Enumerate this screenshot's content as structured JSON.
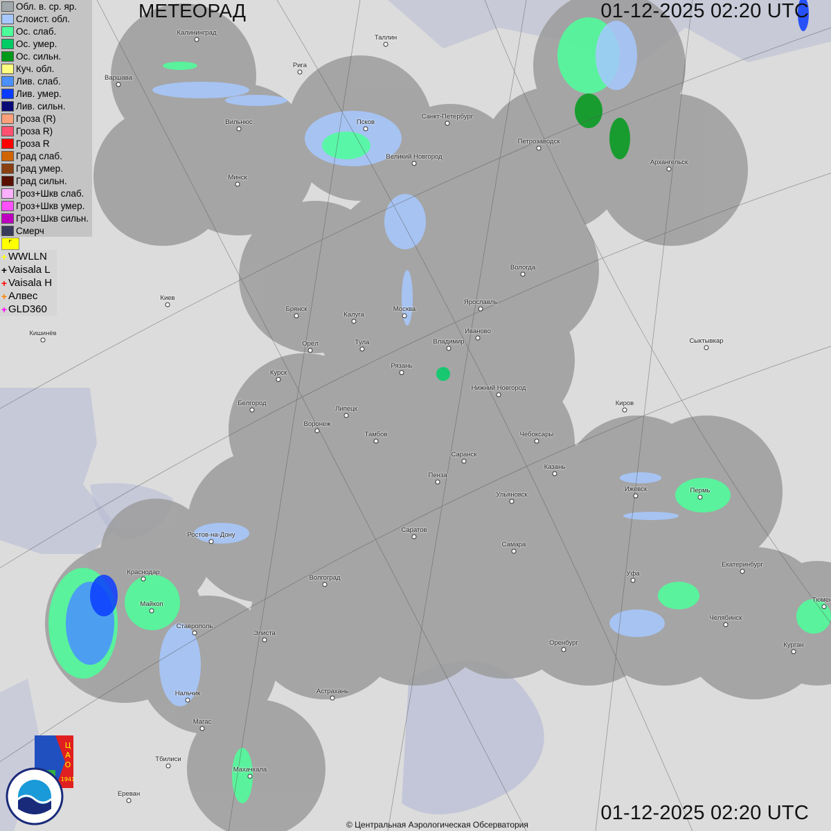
{
  "header": {
    "title": "МЕТЕОРАД",
    "timestamp": "01-12-2025  02:20 UTC"
  },
  "footer": {
    "timestamp": "01-12-2025  02:20 UTC",
    "copyright": "© Центральная Аэрологическая Обсерватория"
  },
  "legend": [
    {
      "label": "Обл. в. ср. яр.",
      "color": "#a0a8ac"
    },
    {
      "label": "Слоист. обл.",
      "color": "#a6c8ff"
    },
    {
      "label": "Ос. слаб.",
      "color": "#4cff9a"
    },
    {
      "label": "Ос. умер.",
      "color": "#00cc66"
    },
    {
      "label": "Ос. сильн.",
      "color": "#009a1a"
    },
    {
      "label": "Куч. обл.",
      "color": "#ffff80"
    },
    {
      "label": "Лив. слаб.",
      "color": "#4a90ff"
    },
    {
      "label": "Лив. умер.",
      "color": "#0a3cff"
    },
    {
      "label": "Лив. сильн.",
      "color": "#0a0a78"
    },
    {
      "label": "Гроза (R)",
      "color": "#ffa07a"
    },
    {
      "label": "Гроза R)",
      "color": "#ff5070"
    },
    {
      "label": "Гроза R",
      "color": "#ff0000"
    },
    {
      "label": "Град слаб.",
      "color": "#d06400"
    },
    {
      "label": "Град умер.",
      "color": "#8a4010"
    },
    {
      "label": "Град сильн.",
      "color": "#5a1000"
    },
    {
      "label": "Гроз+Шкв слаб.",
      "color": "#ffb0ff"
    },
    {
      "label": "Гроз+Шкв умер.",
      "color": "#ff50ff"
    },
    {
      "label": "Гроз+Шкв сильн.",
      "color": "#c000c0"
    },
    {
      "label": "Смерч",
      "color": "#3a3a5a"
    }
  ],
  "flag_symbol": "⌜",
  "lightning": [
    {
      "label": "WWLLN",
      "color": "#ffff00"
    },
    {
      "label": "Vaisala L",
      "color": "#000000"
    },
    {
      "label": "Vaisala H",
      "color": "#ff0000"
    },
    {
      "label": "Алвес",
      "color": "#ff8000"
    },
    {
      "label": "GLD360",
      "color": "#ff00ff"
    }
  ],
  "cities": [
    "Калининград",
    "Варшава",
    "Рига",
    "Таллин",
    "Вильнюс",
    "Псков",
    "Санкт-Петербург",
    "Петрозаводск",
    "Великий Новгород",
    "Архангельск",
    "Минск",
    "Вологда",
    "Киев",
    "Брянск",
    "Калуга",
    "Москва",
    "Ярославль",
    "Иваново",
    "Владимир",
    "Тула",
    "Орёл",
    "Кишинёв",
    "Сыктывкар",
    "Рязань",
    "Курск",
    "Нижний Новгород",
    "Белгород",
    "Киров",
    "Липецк",
    "Воронеж",
    "Тамбов",
    "Чебоксары",
    "Саранск",
    "Пенза",
    "Казань",
    "Ижевск",
    "Пермь",
    "Ульяновск",
    "Ростов-на-Дону",
    "Саратов",
    "Самара",
    "Краснодар",
    "Екатеринбург",
    "Уфа",
    "Волгоград",
    "Майкоп",
    "Челябинск",
    "Ставрополь",
    "Элиста",
    "Оренбург",
    "Курган",
    "Тюмень",
    "Астрахань",
    "Нальчик",
    "Магас",
    "Тбилиси",
    "Махачкала",
    "Ереван"
  ],
  "logos": {
    "cao": "ЦАО 1941",
    "roshydromet": "РОСГИДРОМЕТ ROSHYDROMET"
  }
}
